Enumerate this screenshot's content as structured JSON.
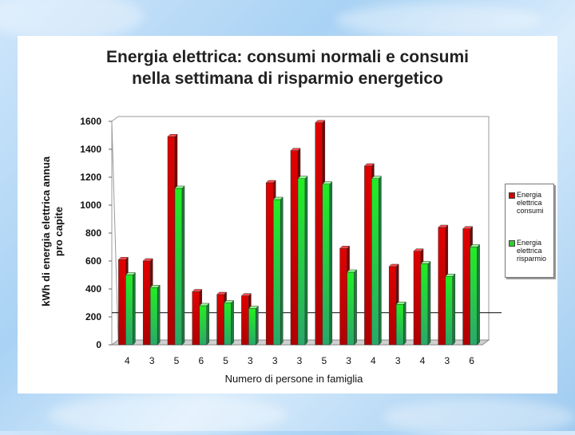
{
  "colors": {
    "consumi": "#cc0000",
    "risparmio": "#33cc33"
  },
  "chart_data": {
    "type": "bar",
    "title": "Energia elettrica: consumi normali e consumi nella settimana di risparmio energetico",
    "title_lines": [
      "Energia elettrica: consumi normali e consumi",
      "nella settimana di risparmio energetico"
    ],
    "ylabel": "kWh di energia elettrica annua pro capite",
    "ylabel_lines": [
      "kWh di energia elettrica annua",
      "pro capite"
    ],
    "xlabel": "Numero di persone in famiglia",
    "categories": [
      "4",
      "3",
      "5",
      "6",
      "5",
      "3",
      "3",
      "3",
      "5",
      "3",
      "4",
      "3",
      "4",
      "3",
      "6"
    ],
    "ylim": [
      0,
      1600
    ],
    "yticks": [
      "0",
      "200",
      "400",
      "600",
      "800",
      "1000",
      "1200",
      "1400",
      "1600"
    ],
    "reference_line": 230,
    "legend_position": "right",
    "series": [
      {
        "name": "Energia elettrica consumi",
        "legend_lines": [
          "Energia",
          "elettrica",
          "consumi"
        ],
        "values": [
          610,
          600,
          1490,
          380,
          360,
          350,
          1160,
          1390,
          1590,
          690,
          1280,
          560,
          670,
          840,
          830
        ]
      },
      {
        "name": "Energia elettrica risparmio",
        "legend_lines": [
          "Energia",
          "elettrica",
          "risparmio"
        ],
        "values": [
          500,
          410,
          1120,
          280,
          300,
          260,
          1040,
          1190,
          1150,
          520,
          1190,
          290,
          580,
          490,
          700
        ]
      }
    ]
  }
}
